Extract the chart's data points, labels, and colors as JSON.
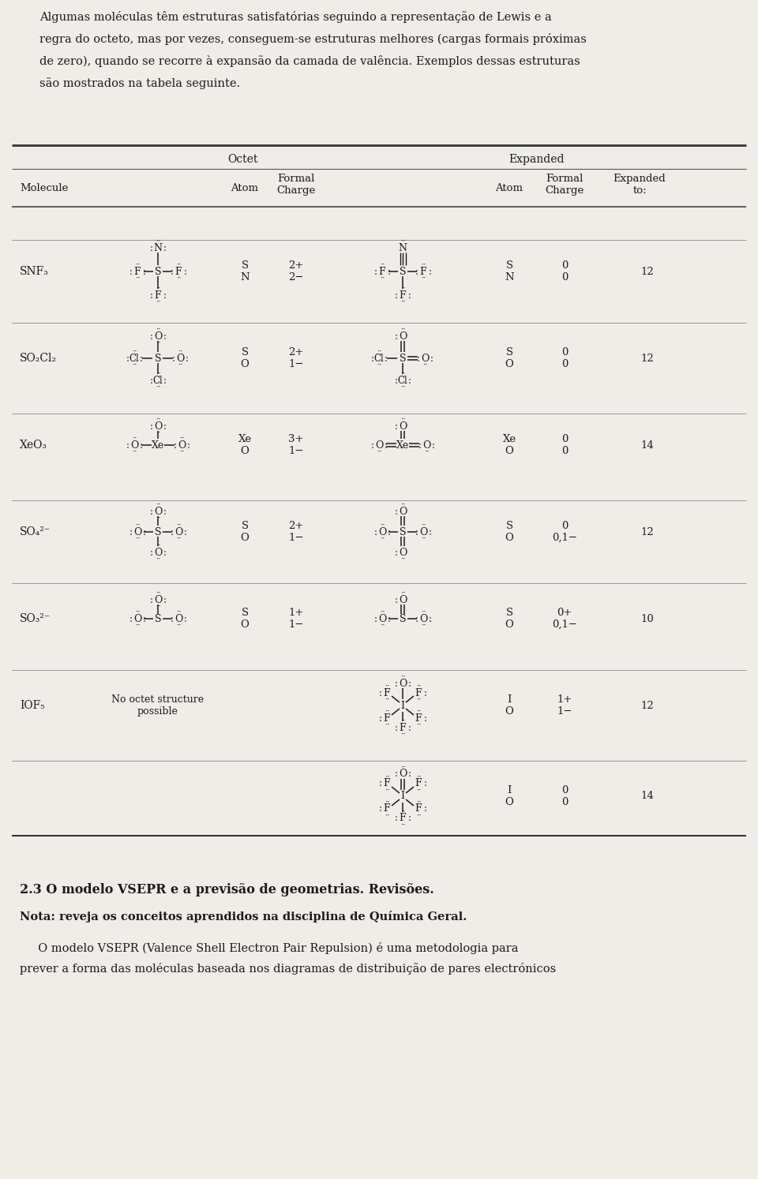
{
  "bg_color": "#f0ede8",
  "text_color": "#1a1a1a",
  "intro_lines": [
    "Algumas moléculas têm estruturas satisfatórias seguindo a representação de Lewis e a",
    "regra do octeto, mas por vezes, conseguem-se estruturas melhores (cargas formais próximas",
    "de zero), quando se recorre à expansão da camada de valência. Exemplos dessas estruturas",
    "são mostrados na tabela seguinte."
  ],
  "section_title": "2.3 O modelo VSEPR e a previsão de geometrias. Revisões.",
  "nota_text": "Nota: reveja os conceitos aprendidos na disciplina de Química Geral.",
  "vsepr_lines": [
    "     O modelo VSEPR (Valence Shell Electron Pair Repulsion) é uma metodologia para",
    "prever a forma das moléculas baseada nos diagramas de distribuição de pares electrónicos"
  ]
}
